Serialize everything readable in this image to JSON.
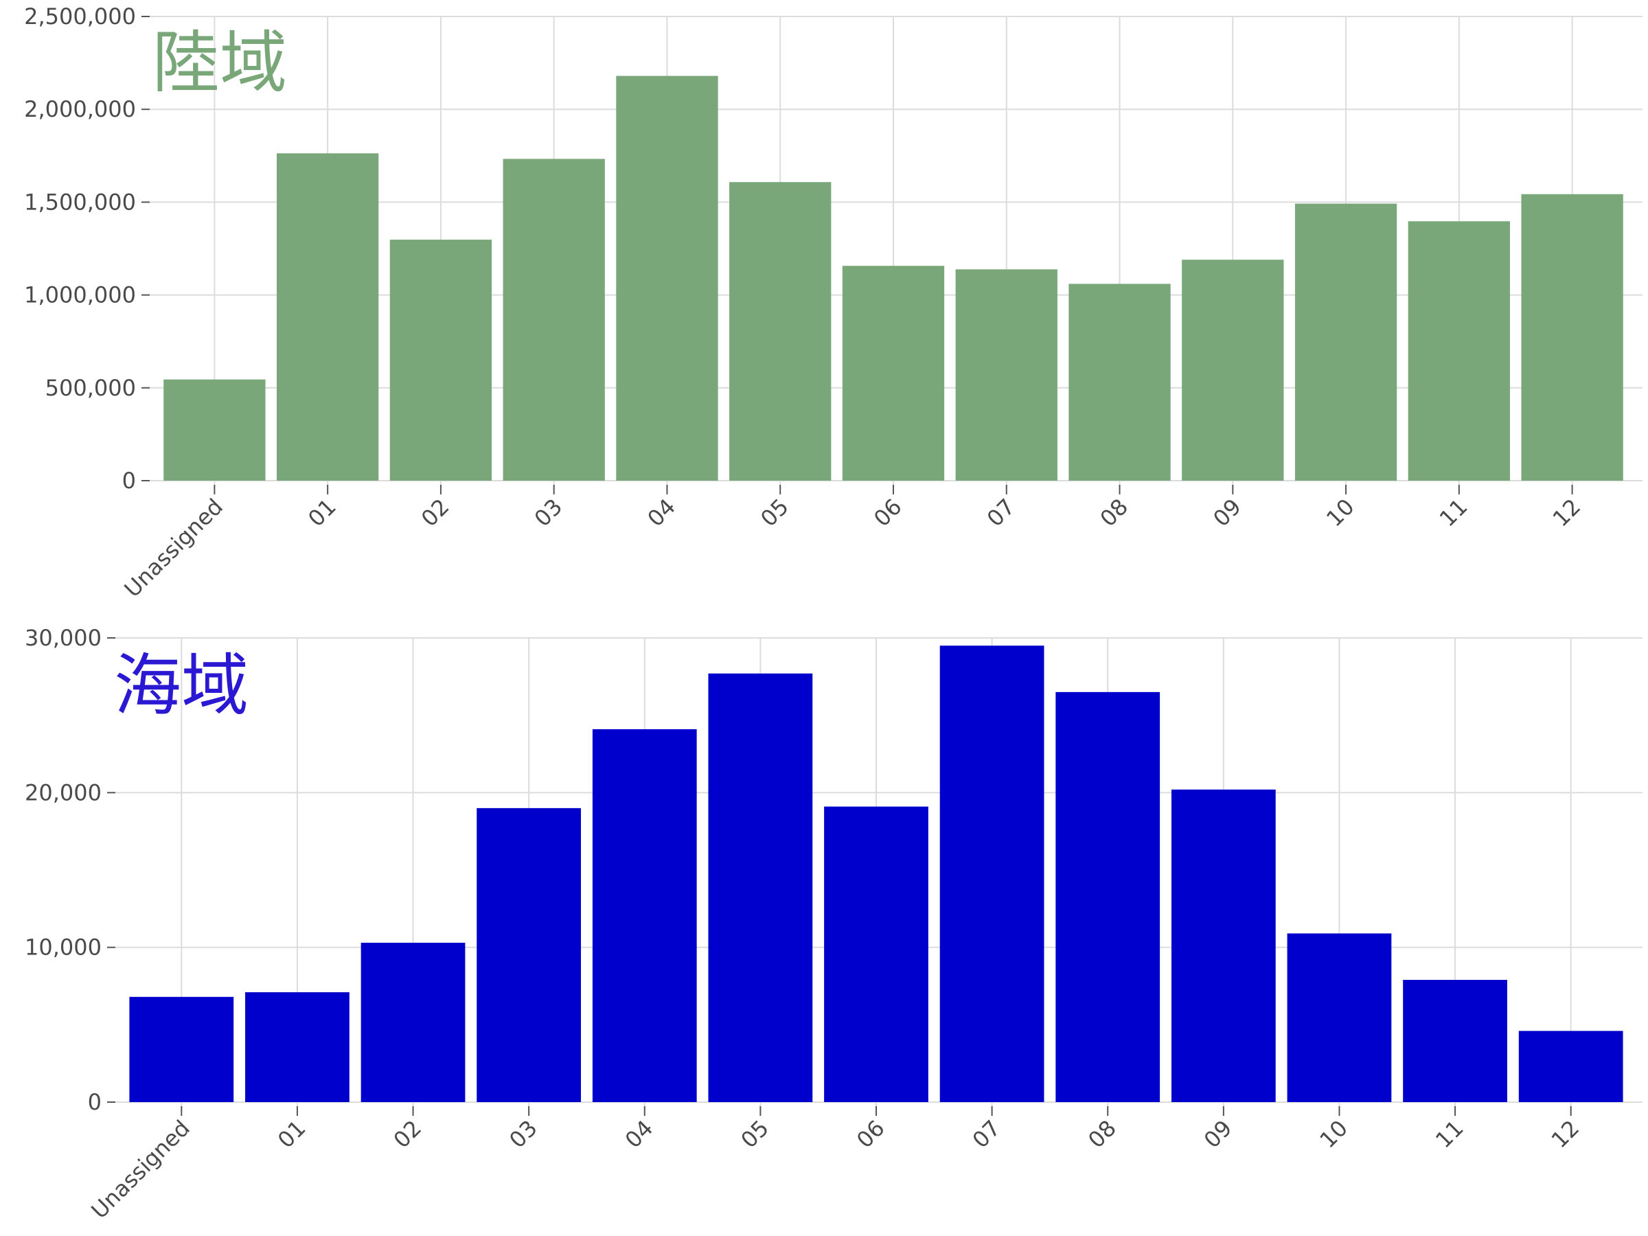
{
  "chart_data": [
    {
      "type": "bar",
      "title": "陸域",
      "title_color": "#79a779",
      "bar_color": "#79a779",
      "categories": [
        "Unassigned",
        "01",
        "02",
        "03",
        "04",
        "05",
        "06",
        "07",
        "08",
        "09",
        "10",
        "11",
        "12"
      ],
      "values": [
        545000,
        1763000,
        1298000,
        1733000,
        2180000,
        1608000,
        1157000,
        1138000,
        1060000,
        1190000,
        1492000,
        1397000,
        1543000
      ],
      "xlabel": "",
      "ylabel": "",
      "ylim": [
        0,
        2500000
      ],
      "yticks": [
        0,
        500000,
        1000000,
        1500000,
        2000000,
        2500000
      ],
      "ytick_labels": [
        "0",
        "500,000",
        "1,000,000",
        "1,500,000",
        "2,000,000",
        "2,500,000"
      ],
      "grid": true
    },
    {
      "type": "bar",
      "title": "海域",
      "title_color": "#2a18d2",
      "bar_color": "#0000cc",
      "categories": [
        "Unassigned",
        "01",
        "02",
        "03",
        "04",
        "05",
        "06",
        "07",
        "08",
        "09",
        "10",
        "11",
        "12"
      ],
      "values": [
        6800,
        7100,
        10300,
        19000,
        24100,
        27700,
        19100,
        29500,
        26500,
        20200,
        10900,
        7900,
        4600
      ],
      "xlabel": "",
      "ylabel": "",
      "ylim": [
        0,
        30000
      ],
      "yticks": [
        0,
        10000,
        20000,
        30000
      ],
      "ytick_labels": [
        "0",
        "10,000",
        "20,000",
        "30,000"
      ],
      "grid": true
    }
  ]
}
